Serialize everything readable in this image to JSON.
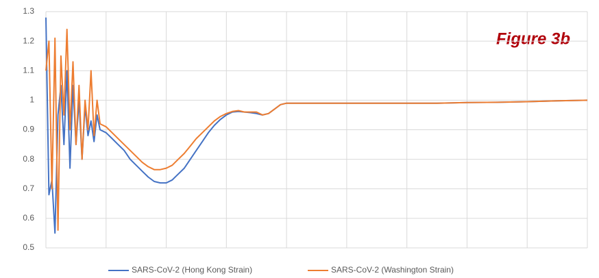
{
  "chart_data": {
    "type": "line",
    "annotation": "Figure 3b",
    "x": [
      0,
      0.5,
      1,
      1.5,
      2,
      2.5,
      3,
      3.5,
      4,
      4.5,
      5,
      5.5,
      6,
      6.5,
      7,
      7.5,
      8,
      8.5,
      9,
      10,
      11,
      12,
      13,
      14,
      15,
      16,
      17,
      18,
      19,
      20,
      21,
      22,
      23,
      24,
      25,
      26,
      27,
      28,
      29,
      30,
      31,
      32,
      33,
      34,
      35,
      36,
      37,
      38,
      39,
      40,
      45,
      50,
      55,
      60,
      65,
      70,
      75,
      80,
      85,
      90
    ],
    "series": [
      {
        "name": "SARS-CoV-2 (Hong Kong Strain)",
        "color": "#4472c4",
        "values": [
          1.28,
          0.68,
          0.73,
          0.55,
          0.95,
          1.05,
          0.85,
          1.1,
          0.77,
          1.05,
          0.85,
          1.0,
          0.8,
          0.98,
          0.88,
          0.93,
          0.86,
          0.95,
          0.9,
          0.89,
          0.87,
          0.85,
          0.83,
          0.8,
          0.78,
          0.76,
          0.74,
          0.725,
          0.72,
          0.72,
          0.73,
          0.75,
          0.77,
          0.8,
          0.83,
          0.86,
          0.89,
          0.915,
          0.935,
          0.95,
          0.96,
          0.962,
          0.96,
          0.958,
          0.955,
          0.95,
          0.955,
          0.97,
          0.985,
          0.99,
          0.99,
          0.99,
          0.99,
          0.99,
          0.99,
          0.992,
          0.993,
          0.995,
          0.998,
          1.0
        ]
      },
      {
        "name": "SARS-CoV-2 (Washington Strain)",
        "color": "#ed7d31",
        "values": [
          1.1,
          1.2,
          0.7,
          1.21,
          0.56,
          1.15,
          0.95,
          1.24,
          0.9,
          1.13,
          0.85,
          1.05,
          0.8,
          1.0,
          0.9,
          1.1,
          0.88,
          1.0,
          0.92,
          0.91,
          0.89,
          0.87,
          0.85,
          0.83,
          0.81,
          0.79,
          0.775,
          0.765,
          0.765,
          0.77,
          0.78,
          0.8,
          0.82,
          0.845,
          0.87,
          0.89,
          0.91,
          0.93,
          0.945,
          0.955,
          0.962,
          0.965,
          0.96,
          0.96,
          0.96,
          0.95,
          0.955,
          0.97,
          0.985,
          0.99,
          0.99,
          0.99,
          0.99,
          0.99,
          0.99,
          0.992,
          0.993,
          0.995,
          0.998,
          1.0
        ]
      }
    ],
    "xlim": [
      0,
      90
    ],
    "xticks": [
      0,
      10,
      20,
      30,
      40,
      50,
      60,
      70,
      80,
      90
    ],
    "ylim": [
      0.5,
      1.3
    ],
    "yticks": [
      0.5,
      0.6,
      0.7,
      0.8,
      0.9,
      1,
      1.1,
      1.2,
      1.3
    ],
    "grid": true,
    "legend": "bottom"
  }
}
